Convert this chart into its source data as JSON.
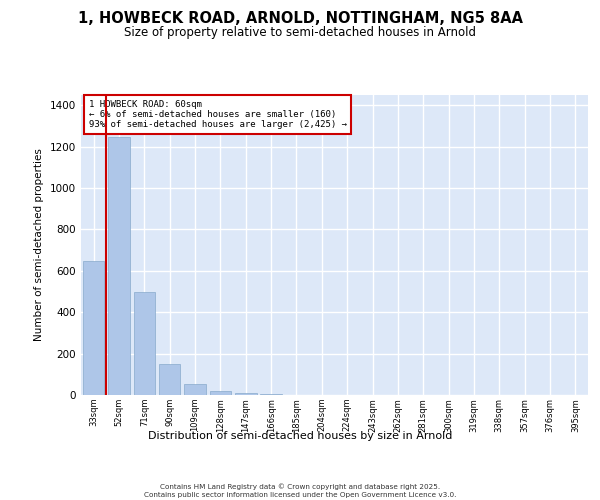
{
  "title_line1": "1, HOWBECK ROAD, ARNOLD, NOTTINGHAM, NG5 8AA",
  "title_line2": "Size of property relative to semi-detached houses in Arnold",
  "xlabel": "Distribution of semi-detached houses by size in Arnold",
  "ylabel": "Number of semi-detached properties",
  "annotation_title": "1 HOWBECK ROAD: 60sqm",
  "annotation_line2": "← 6% of semi-detached houses are smaller (160)",
  "annotation_line3": "93% of semi-detached houses are larger (2,425) →",
  "bin_labels": [
    "33sqm",
    "52sqm",
    "71sqm",
    "90sqm",
    "109sqm",
    "128sqm",
    "147sqm",
    "166sqm",
    "185sqm",
    "204sqm",
    "224sqm",
    "243sqm",
    "262sqm",
    "281sqm",
    "300sqm",
    "319sqm",
    "338sqm",
    "357sqm",
    "376sqm",
    "395sqm"
  ],
  "counts": [
    648,
    1247,
    497,
    150,
    55,
    20,
    8,
    3,
    2,
    1,
    1,
    0,
    0,
    1,
    0,
    0,
    0,
    0,
    0,
    0
  ],
  "bar_color": "#aec6e8",
  "bar_edge_color": "#88aacc",
  "vline_color": "#cc0000",
  "annotation_box_edge_color": "#cc0000",
  "annotation_bg_color": "#ffffff",
  "background_color": "#dde8f8",
  "grid_color": "#ffffff",
  "ylim": [
    0,
    1450
  ],
  "yticks": [
    0,
    200,
    400,
    600,
    800,
    1000,
    1200,
    1400
  ],
  "footer_line1": "Contains HM Land Registry data © Crown copyright and database right 2025.",
  "footer_line2": "Contains public sector information licensed under the Open Government Licence v3.0."
}
